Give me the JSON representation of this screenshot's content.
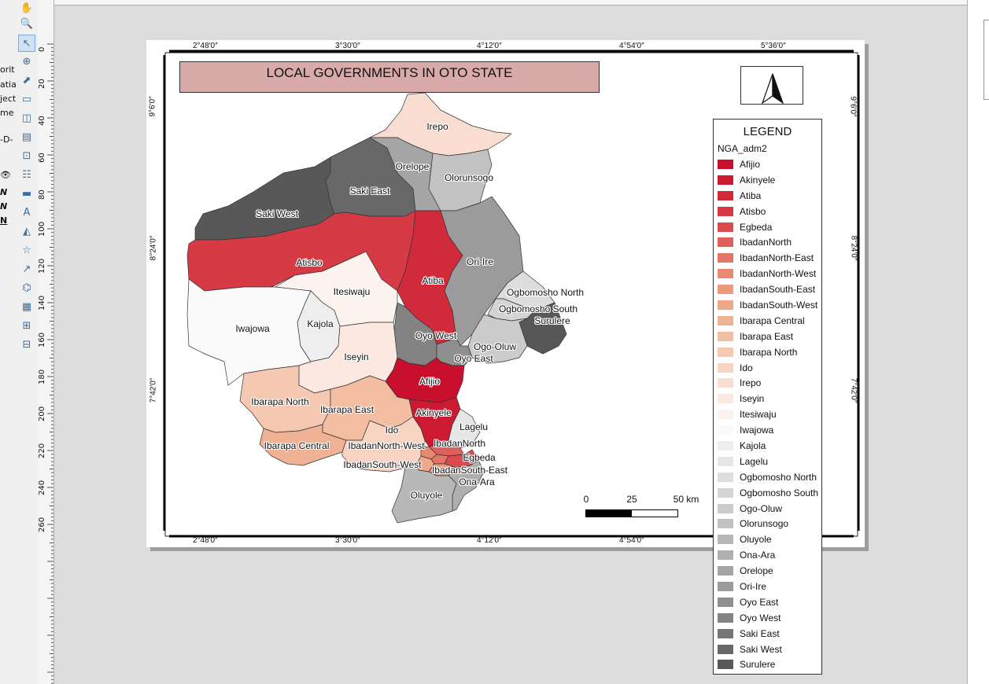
{
  "left_panel": {
    "fragments": [
      "orit",
      "atial",
      "ject",
      "me",
      "-D-",
      "N",
      "N",
      "N"
    ]
  },
  "ruler": {
    "vertical_ticks": [
      "0",
      "20",
      "40",
      "60",
      "80",
      "100",
      "120",
      "140",
      "160",
      "180",
      "200",
      "220",
      "240",
      "260"
    ]
  },
  "map": {
    "title": "LOCAL GOVERNMENTS IN OTO STATE",
    "grid_labels": {
      "top": [
        "2°48′0″",
        "3°30′0″",
        "4°12′0″",
        "4°54′0″",
        "5°36′0″"
      ],
      "bottom": [
        "2°48′0″",
        "3°30′0″",
        "4°12′0″",
        "4°54′0″"
      ],
      "left": [
        "9°6′0″",
        "8°24′0″",
        "7°42′0″"
      ],
      "right": [
        "9°6′0″",
        "8°24′0″",
        "7°42′0″"
      ]
    },
    "region_labels": [
      "Irepo",
      "Orelope",
      "Olorunsogo",
      "Saki East",
      "Saki West",
      "Atisbo",
      "Ori-Ire",
      "Atiba",
      "Itesiwaju",
      "Ogbomosho North",
      "Ogbomosho South",
      "Surulere",
      "Kajola",
      "Iwajowa",
      "Oyo West",
      "Ogo-Oluw",
      "Oyo East",
      "Iseyin",
      "Afijio",
      "Ibarapa North",
      "Ibarapa East",
      "Akinyele",
      "Lagelu",
      "Ido",
      "IbadanNorth",
      "Ibarapa Central",
      "IbadanNorth-West",
      "Egbeda",
      "IbadanSouth-West",
      "IbadanSouth-East",
      "Ona-Ara",
      "Oluyole"
    ],
    "scale": {
      "labels": [
        "0",
        "25",
        "50 km"
      ]
    }
  },
  "legend": {
    "title": "LEGEND",
    "layer": "NGA_adm2",
    "items": [
      {
        "label": "Afijio",
        "color": "#c8102e"
      },
      {
        "label": "Akinyele",
        "color": "#cc1a33"
      },
      {
        "label": "Atiba",
        "color": "#d12a3b"
      },
      {
        "label": "Atisbo",
        "color": "#d63a44"
      },
      {
        "label": "Egbeda",
        "color": "#da4b4f"
      },
      {
        "label": "IbadanNorth",
        "color": "#df5f5a"
      },
      {
        "label": "IbadanNorth-East",
        "color": "#e37566"
      },
      {
        "label": "IbadanNorth-West",
        "color": "#e88a72"
      },
      {
        "label": "IbadanSouth-East",
        "color": "#eb9a7e"
      },
      {
        "label": "IbadanSouth-West",
        "color": "#eea788"
      },
      {
        "label": "Ibarapa Central",
        "color": "#f0b294"
      },
      {
        "label": "Ibarapa East",
        "color": "#f3bda2"
      },
      {
        "label": "Ibarapa North",
        "color": "#f5c8b1"
      },
      {
        "label": "Ido",
        "color": "#f7d3c2"
      },
      {
        "label": "Irepo",
        "color": "#f9ddd1"
      },
      {
        "label": "Iseyin",
        "color": "#fbe8e0"
      },
      {
        "label": "Itesiwaju",
        "color": "#fdf3ee"
      },
      {
        "label": "Iwajowa",
        "color": "#fafafa"
      },
      {
        "label": "Kajola",
        "color": "#eeeeee"
      },
      {
        "label": "Lagelu",
        "color": "#e6e6e6"
      },
      {
        "label": "Ogbomosho North",
        "color": "#dddddd"
      },
      {
        "label": "Ogbomosho South",
        "color": "#d4d4d4"
      },
      {
        "label": "Ogo-Oluw",
        "color": "#cbcbcb"
      },
      {
        "label": "Olorunsogo",
        "color": "#c2c2c2"
      },
      {
        "label": "Oluyole",
        "color": "#b8b8b8"
      },
      {
        "label": "Ona-Ara",
        "color": "#afafaf"
      },
      {
        "label": "Orelope",
        "color": "#a5a5a5"
      },
      {
        "label": "Ori-Ire",
        "color": "#9b9b9b"
      },
      {
        "label": "Oyo East",
        "color": "#8f8f8f"
      },
      {
        "label": "Oyo West",
        "color": "#838383"
      },
      {
        "label": "Saki East",
        "color": "#767676"
      },
      {
        "label": "Saki West",
        "color": "#686868"
      },
      {
        "label": "Surulere",
        "color": "#585858"
      }
    ]
  }
}
